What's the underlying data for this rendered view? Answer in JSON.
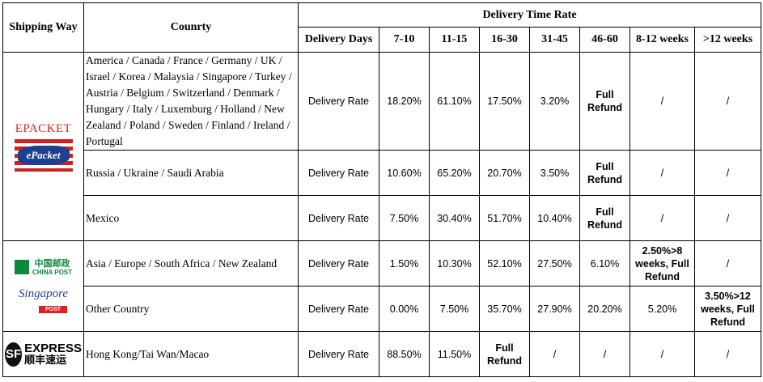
{
  "header": {
    "shipping_way": "Shipping Way",
    "country": "Counrty",
    "group": "Delivery Time Rate",
    "columns": [
      "Delivery Days",
      "7-10",
      "11-15",
      "16-30",
      "31-45",
      "46-60",
      "8-12 weeks",
      ">12 weeks"
    ]
  },
  "groups": [
    {
      "logos": [
        {
          "title": "EPACKET",
          "badge": "ePacket"
        }
      ],
      "rows": [
        {
          "country": "America / Canada / France / Germany / UK / Israel / Korea / Malaysia / Singapore / Turkey / Austria / Belgium / Switzerland / Denmark / Hungary / Italy / Luxemburg / Holland / New Zealand / Poland / Sweden / Finland / Ireland / Portugal",
          "cells": [
            "Delivery Rate",
            "18.20%",
            "61.10%",
            "17.50%",
            "3.20%",
            "Full Refund",
            "/",
            "/"
          ]
        },
        {
          "country": "Russia / Ukraine / Saudi Arabia",
          "cells": [
            "Delivery Rate",
            "10.60%",
            "65.20%",
            "20.70%",
            "3.50%",
            "Full Refund",
            "/",
            "/"
          ]
        },
        {
          "country": "Mexico",
          "cells": [
            "Delivery Rate",
            "7.50%",
            "30.40%",
            "51.70%",
            "10.40%",
            "Full Refund",
            "/",
            "/"
          ]
        }
      ]
    },
    {
      "logos": [
        {
          "chinese": "中国邮政",
          "english": "CHINA POST"
        },
        {
          "script": "Singapore",
          "badge": "POST"
        }
      ],
      "rows": [
        {
          "country": "Asia / Europe / South Africa / New Zealand",
          "cells": [
            "Delivery Rate",
            "1.50%",
            "10.30%",
            "52.10%",
            "27.50%",
            "6.10%",
            "2.50%>8 weeks, Full Refund",
            "/"
          ]
        },
        {
          "country": "Other Country",
          "cells": [
            "Delivery Rate",
            "0.00%",
            "7.50%",
            "35.70%",
            "27.90%",
            "20.20%",
            "5.20%",
            "3.50%>12 weeks, Full Refund"
          ]
        }
      ]
    },
    {
      "logos": [
        {
          "mark": "SF",
          "english": "EXPRESS",
          "chinese": "顺丰速运"
        }
      ],
      "rows": [
        {
          "country": "Hong Kong/Tai Wan/Macao",
          "cells": [
            "Delivery Rate",
            "88.50%",
            "11.50%",
            "Full Refund",
            "/",
            "/",
            "/",
            "/"
          ]
        }
      ]
    }
  ]
}
